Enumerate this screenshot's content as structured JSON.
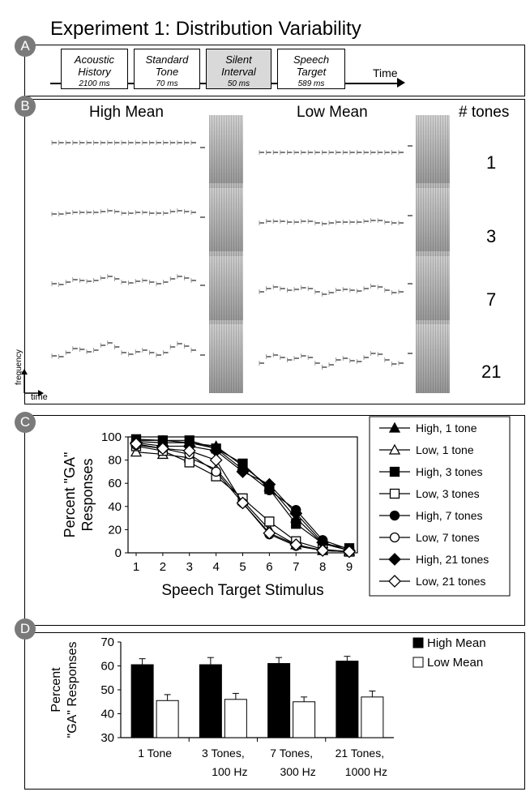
{
  "title": "Experiment 1: Distribution Variability",
  "panels": {
    "a": "A",
    "b": "B",
    "c": "C",
    "d": "D"
  },
  "timeline": {
    "boxes": [
      {
        "name": "Acoustic History",
        "line1": "Acoustic",
        "line2": "History",
        "ms": "2100 ms"
      },
      {
        "name": "Standard Tone",
        "line1": "Standard",
        "line2": "Tone",
        "ms": "70 ms"
      },
      {
        "name": "Silent Interval",
        "line1": "Silent",
        "line2": "Interval",
        "ms": "50 ms"
      },
      {
        "name": "Speech Target",
        "line1": "Speech",
        "line2": "Target",
        "ms": "589 ms"
      }
    ],
    "time_label": "Time"
  },
  "stimuli": {
    "high_label": "High Mean",
    "low_label": "Low Mean",
    "tones_label": "# tones",
    "tone_counts": [
      "1",
      "3",
      "7",
      "21"
    ],
    "axis_frequency": "frequency",
    "axis_time": "time"
  },
  "chart_data": [
    {
      "type": "line",
      "xlabel": "Speech Target Stimulus",
      "ylabel_line1": "Percent \"GA\"",
      "ylabel_line2": "Responses",
      "x": [
        1,
        2,
        3,
        4,
        5,
        6,
        7,
        8,
        9
      ],
      "ylim": [
        0,
        100
      ],
      "yticks": [
        0,
        20,
        40,
        60,
        80,
        100
      ],
      "series": [
        {
          "name": "High, 1 tone",
          "marker": "triangle",
          "filled": true,
          "values": [
            96,
            95,
            95,
            92,
            75,
            57,
            30,
            8,
            2
          ]
        },
        {
          "name": "Low, 1 tone",
          "marker": "triangle",
          "filled": false,
          "values": [
            87,
            85,
            82,
            72,
            45,
            20,
            7,
            2,
            1
          ]
        },
        {
          "name": "High, 3 tones",
          "marker": "square",
          "filled": true,
          "values": [
            98,
            97,
            97,
            90,
            77,
            55,
            25,
            8,
            4
          ]
        },
        {
          "name": "Low, 3 tones",
          "marker": "square",
          "filled": false,
          "values": [
            92,
            88,
            78,
            66,
            47,
            27,
            10,
            3,
            1
          ]
        },
        {
          "name": "High, 7 tones",
          "marker": "circle",
          "filled": true,
          "values": [
            97,
            97,
            95,
            90,
            72,
            54,
            37,
            11,
            3
          ]
        },
        {
          "name": "Low, 7 tones",
          "marker": "circle",
          "filled": false,
          "values": [
            93,
            90,
            85,
            70,
            43,
            16,
            6,
            2,
            1
          ]
        },
        {
          "name": "High, 21 tones",
          "marker": "diamond",
          "filled": true,
          "values": [
            95,
            92,
            92,
            88,
            70,
            59,
            34,
            9,
            2
          ]
        },
        {
          "name": "Low, 21 tones",
          "marker": "diamond",
          "filled": false,
          "values": [
            94,
            90,
            88,
            80,
            43,
            17,
            7,
            2,
            1
          ]
        }
      ]
    },
    {
      "type": "bar",
      "ylabel_line1": "Percent",
      "ylabel_line2": "\"GA\" Responses",
      "ylim": [
        30,
        70
      ],
      "yticks": [
        30,
        40,
        50,
        60,
        70
      ],
      "categories": [
        {
          "line1": "1 Tone",
          "line2": ""
        },
        {
          "line1": "3 Tones,",
          "line2": "100 Hz"
        },
        {
          "line1": "7 Tones,",
          "line2": "300 Hz"
        },
        {
          "line1": "21 Tones,",
          "line2": "1000 Hz"
        }
      ],
      "series": [
        {
          "name": "High Mean",
          "color": "#000000",
          "values": [
            60.5,
            60.5,
            61,
            62
          ],
          "errors": [
            2.5,
            3,
            2.5,
            2
          ]
        },
        {
          "name": "Low Mean",
          "color": "#ffffff",
          "values": [
            45.5,
            46,
            45,
            47
          ],
          "errors": [
            2.5,
            2.5,
            2,
            2.5
          ]
        }
      ]
    }
  ]
}
